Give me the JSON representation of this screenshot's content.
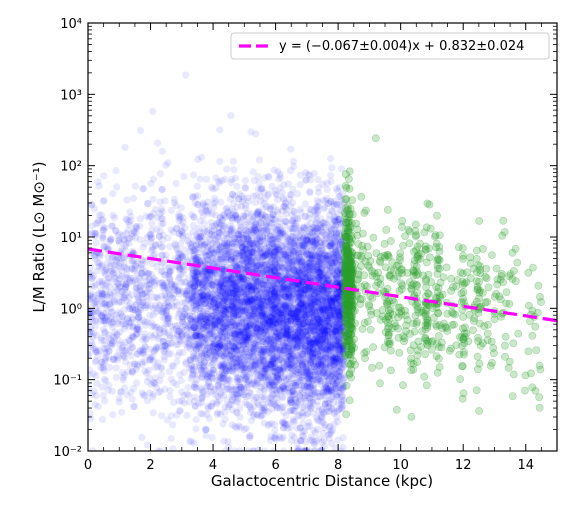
{
  "chart_data": {
    "type": "scatter",
    "xlabel": "Galactocentric Distance (kpc)",
    "ylabel": "L/M Ratio  (L⊙ M⊙⁻¹)",
    "xlim": [
      0,
      15
    ],
    "ylim": [
      0.01,
      10000
    ],
    "yscale": "log",
    "x_ticks": [
      0,
      2,
      4,
      6,
      8,
      10,
      12,
      14
    ],
    "x_tick_labels": [
      "0",
      "2",
      "4",
      "6",
      "8",
      "10",
      "12",
      "14"
    ],
    "y_ticks": [
      0.01,
      0.1,
      1,
      10,
      100,
      1000,
      10000
    ],
    "y_tick_labels": [
      "10⁻²",
      "10⁻¹",
      "10⁰",
      "10¹",
      "10²",
      "10³",
      "10⁴"
    ],
    "grid": false,
    "legend_position": "top-right",
    "legend": [
      {
        "label": "y = (−0.067±0.004)x + 0.832±0.024",
        "color": "#ff00ff",
        "style": "dashed"
      }
    ],
    "fit_line": {
      "slope": -0.067,
      "slope_err": 0.004,
      "intercept": 0.832,
      "intercept_err": 0.024,
      "form": "log10(y) = slope * x + intercept",
      "color": "#ff00ff"
    },
    "series": [
      {
        "color": "#0000ff",
        "opacity": 0.09,
        "x_range": [
          0,
          8.2
        ],
        "y_range": [
          0.01,
          3000
        ],
        "y_typical": 1,
        "approx_points": 7000
      },
      {
        "color": "#2ca02c",
        "opacity": 0.25,
        "x_range": [
          8.2,
          14.5
        ],
        "y_range": [
          0.025,
          300
        ],
        "y_typical": 2,
        "approx_points": 900
      }
    ]
  }
}
